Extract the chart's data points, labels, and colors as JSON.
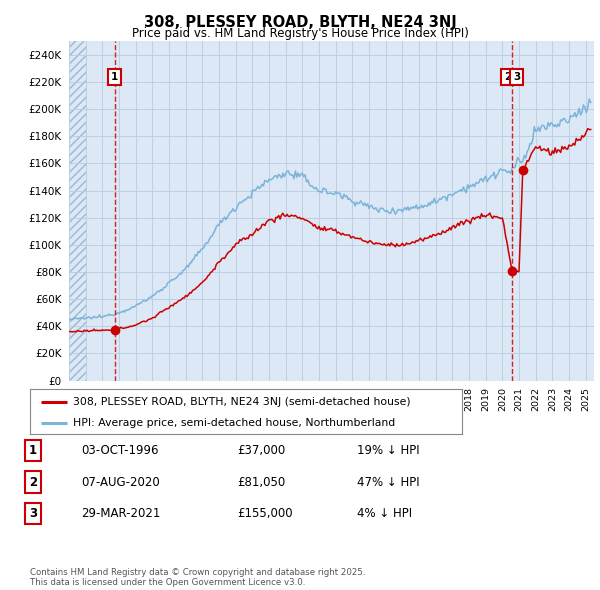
{
  "title": "308, PLESSEY ROAD, BLYTH, NE24 3NJ",
  "subtitle": "Price paid vs. HM Land Registry's House Price Index (HPI)",
  "hpi_color": "#7ab4d8",
  "price_color": "#cc0000",
  "bg_color": "#dce8f5",
  "ylim": [
    0,
    250000
  ],
  "yticks": [
    0,
    20000,
    40000,
    60000,
    80000,
    100000,
    120000,
    140000,
    160000,
    180000,
    200000,
    220000,
    240000
  ],
  "ytick_labels": [
    "£0",
    "£20K",
    "£40K",
    "£60K",
    "£80K",
    "£100K",
    "£120K",
    "£140K",
    "£160K",
    "£180K",
    "£200K",
    "£220K",
    "£240K"
  ],
  "xmin": 1994.0,
  "xmax": 2025.5,
  "transactions": [
    {
      "date_num": 1996.75,
      "price": 37000,
      "label": "1"
    },
    {
      "date_num": 2020.58,
      "price": 81050,
      "label": "2"
    },
    {
      "date_num": 2021.23,
      "price": 155000,
      "label": "3"
    }
  ],
  "trans2_3_shared_x": 2020.58,
  "transaction_labels": [
    {
      "num": "1",
      "date": "03-OCT-1996",
      "price": "£37,000",
      "hpi_pct": "19% ↓ HPI"
    },
    {
      "num": "2",
      "date": "07-AUG-2020",
      "price": "£81,050",
      "hpi_pct": "47% ↓ HPI"
    },
    {
      "num": "3",
      "date": "29-MAR-2021",
      "price": "£155,000",
      "hpi_pct": "4% ↓ HPI"
    }
  ],
  "legend_entries": [
    "308, PLESSEY ROAD, BLYTH, NE24 3NJ (semi-detached house)",
    "HPI: Average price, semi-detached house, Northumberland"
  ],
  "footer": "Contains HM Land Registry data © Crown copyright and database right 2025.\nThis data is licensed under the Open Government Licence v3.0."
}
